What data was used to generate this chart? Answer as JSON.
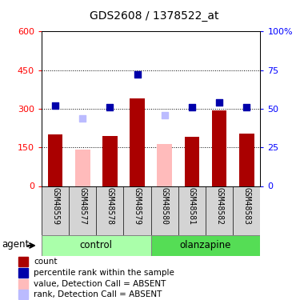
{
  "title": "GDS2608 / 1378522_at",
  "samples": [
    "GSM48559",
    "GSM48577",
    "GSM48578",
    "GSM48579",
    "GSM48580",
    "GSM48581",
    "GSM48582",
    "GSM48583"
  ],
  "bar_values": [
    200,
    null,
    195,
    340,
    null,
    190,
    295,
    205
  ],
  "bar_absent_values": [
    null,
    140,
    null,
    null,
    162,
    null,
    null,
    null
  ],
  "dot_values_pct": [
    52,
    null,
    51,
    72,
    null,
    51,
    54,
    51
  ],
  "dot_absent_values_pct": [
    null,
    44,
    null,
    null,
    46,
    null,
    null,
    null
  ],
  "bar_color": "#aa0000",
  "bar_absent_color": "#ffbbbb",
  "dot_color": "#0000aa",
  "dot_absent_color": "#bbbbff",
  "ylim_left": [
    0,
    600
  ],
  "ylim_right": [
    0,
    100
  ],
  "yticks_left": [
    0,
    150,
    300,
    450,
    600
  ],
  "yticks_right": [
    0,
    25,
    50,
    75,
    100
  ],
  "grid_lines": [
    150,
    300,
    450
  ],
  "bar_width": 0.55,
  "dot_size": 40,
  "ctrl_color": "#aaffaa",
  "olz_color": "#55dd55",
  "sample_bg": "#d4d4d4",
  "legend_items": [
    {
      "label": "count",
      "color": "#aa0000"
    },
    {
      "label": "percentile rank within the sample",
      "color": "#0000aa"
    },
    {
      "label": "value, Detection Call = ABSENT",
      "color": "#ffbbbb"
    },
    {
      "label": "rank, Detection Call = ABSENT",
      "color": "#bbbbff"
    }
  ]
}
